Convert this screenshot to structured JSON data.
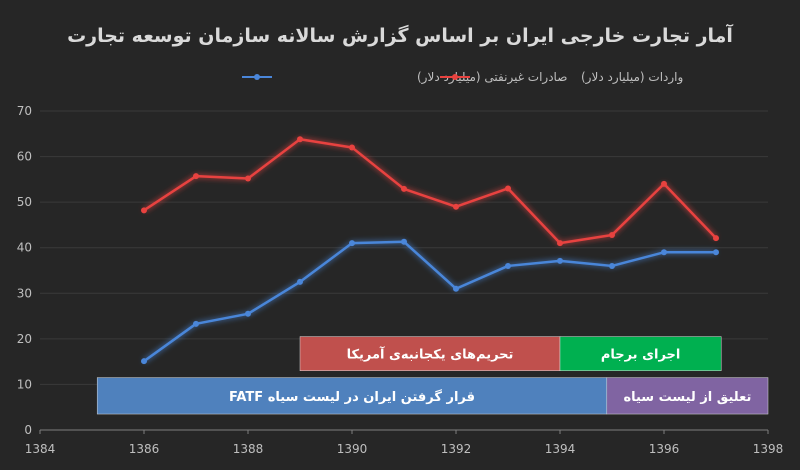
{
  "chart_data": {
    "type": "line",
    "title": "آمار تجارت خارجی ایران بر اساس گزارش سالانه سازمان توسعه تجارت",
    "xlabel": "",
    "ylabel": "",
    "xlim": [
      1384,
      1398
    ],
    "ylim": [
      0,
      70
    ],
    "x_ticks": [
      1384,
      1386,
      1388,
      1390,
      1392,
      1394,
      1396,
      1398
    ],
    "y_ticks": [
      0,
      10,
      20,
      30,
      40,
      50,
      60,
      70
    ],
    "grid": "horizontal",
    "legend": "top",
    "x": [
      1386,
      1387,
      1388,
      1389,
      1390,
      1391,
      1392,
      1393,
      1394,
      1395,
      1396,
      1397
    ],
    "series": [
      {
        "name": "واردات (میلیارد دلار)",
        "color": "#e8423f",
        "values": [
          48.2,
          55.7,
          55.2,
          63.8,
          62.0,
          52.9,
          49.0,
          53.0,
          41.0,
          42.8,
          54.0,
          42.1
        ]
      },
      {
        "name": "صادرات غیرنفتی (میلیارد دلار)",
        "color": "#4a86d9",
        "values": [
          15.1,
          23.3,
          25.5,
          32.5,
          41.0,
          41.3,
          31.0,
          36.0,
          37.1,
          36.0,
          39.0,
          39.0
        ]
      }
    ],
    "annotations": [
      {
        "label": "تحریم‌های یکجانبه‌ی آمریکا",
        "x_start": 1389,
        "x_end": 1394,
        "y_low": 13,
        "y_high": 20.5,
        "color": "#c0504d"
      },
      {
        "label": "اجرای برجام",
        "x_start": 1394,
        "x_end": 1397.1,
        "y_low": 13,
        "y_high": 20.5,
        "color": "#00b050"
      },
      {
        "label": "قرار گرفتن ایران در لیست سیاه FATF",
        "x_start": 1385.1,
        "x_end": 1394.9,
        "y_low": 3.5,
        "y_high": 11.5,
        "color": "#4f81bd"
      },
      {
        "label": "تعلیق از لیست سیاه",
        "x_start": 1394.9,
        "x_end": 1398,
        "y_low": 3.5,
        "y_high": 11.5,
        "color": "#8064a2"
      }
    ]
  }
}
